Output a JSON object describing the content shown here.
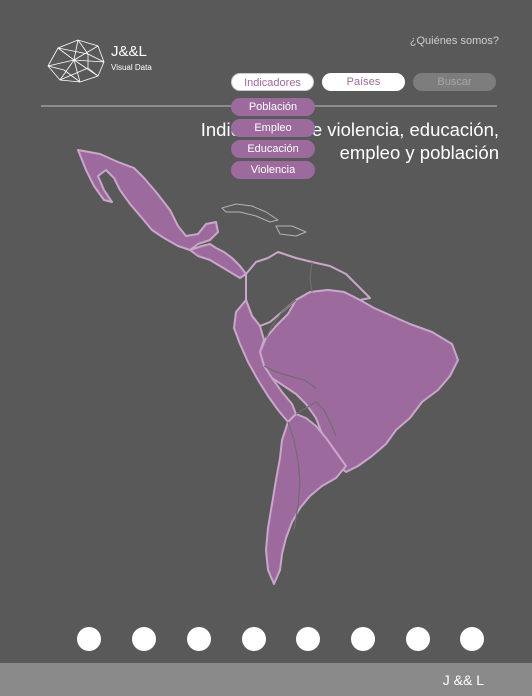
{
  "brand": {
    "name": "J&&L",
    "tagline": "Visual Data",
    "logo_icon": "network-globe-icon"
  },
  "header": {
    "about_link": "¿Quiénes somos?"
  },
  "nav": {
    "indicadores": "Indicadores",
    "paises": "Países",
    "buscar": "Buscar"
  },
  "dropdown": {
    "items": [
      "Población",
      "Empleo",
      "Educación",
      "Violencia"
    ]
  },
  "headline": {
    "line1": "Indicadores de violencia, educación,",
    "line2": "empleo y población"
  },
  "map": {
    "region": "Latinoamérica",
    "highlight_color": "#9c6a9d"
  },
  "pagination": {
    "count": 8
  },
  "footer": {
    "text": "J && L"
  },
  "colors": {
    "background": "#595959",
    "accent": "#9c6a9d",
    "footer": "#8a8a8a"
  }
}
